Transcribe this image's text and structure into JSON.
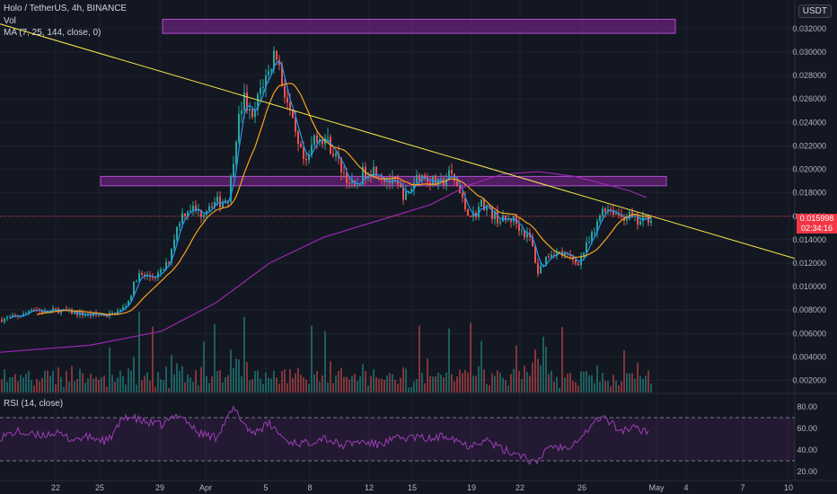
{
  "legend": {
    "symbol": "Holo / TetherUS, 4h, BINANCE",
    "vol": "Vol",
    "ma": "MA (7, 25, 144, close, 0)",
    "rsi": "RSI (14, close)"
  },
  "currency": "USDT",
  "last_price": {
    "value": "0.015998",
    "countdown": "02:34:16"
  },
  "colors": {
    "bg": "#131722",
    "grid": "#1e222d",
    "up": "#26a69a",
    "down": "#ef5350",
    "ma7": "#2196f3",
    "ma25": "#f7a21b",
    "ma144": "#9c27b0",
    "trend": "#f5e94b",
    "zone": "#9c27b0",
    "rsi": "#9b3fb5",
    "price_line": "#f23645"
  },
  "chart_data": [
    {
      "type": "candlestick",
      "symbol": "HOTUSDT",
      "interval": "4h",
      "x_tick_labels": [
        "22",
        "25",
        "29",
        "Apr",
        "5",
        "8",
        "12",
        "15",
        "19",
        "22",
        "26",
        "May",
        "4",
        "7",
        "10"
      ],
      "y_tick_labels": [
        "0.032000",
        "0.030000",
        "0.028000",
        "0.026000",
        "0.024000",
        "0.022000",
        "0.020000",
        "0.018000",
        "0.016000",
        "0.014000",
        "0.012000",
        "0.010000",
        "0.008000",
        "0.006000",
        "0.004000",
        "0.002000"
      ],
      "ylim": [
        0.0012,
        0.0336
      ],
      "close_path": [
        [
          0,
          0.0072
        ],
        [
          14,
          0.0074
        ],
        [
          26,
          0.0076
        ],
        [
          34,
          0.0082
        ],
        [
          48,
          0.0078
        ],
        [
          62,
          0.008
        ],
        [
          78,
          0.0078
        ],
        [
          94,
          0.0076
        ],
        [
          110,
          0.0076
        ],
        [
          122,
          0.0076
        ],
        [
          134,
          0.008
        ],
        [
          142,
          0.0088
        ],
        [
          152,
          0.011
        ],
        [
          164,
          0.0108
        ],
        [
          176,
          0.011
        ],
        [
          186,
          0.012
        ],
        [
          192,
          0.014
        ],
        [
          200,
          0.016
        ],
        [
          210,
          0.0168
        ],
        [
          222,
          0.0162
        ],
        [
          234,
          0.0172
        ],
        [
          246,
          0.0172
        ],
        [
          254,
          0.0178
        ],
        [
          262,
          0.023
        ],
        [
          270,
          0.0262
        ],
        [
          280,
          0.024
        ],
        [
          290,
          0.0272
        ],
        [
          298,
          0.0282
        ],
        [
          306,
          0.0304
        ],
        [
          312,
          0.0278
        ],
        [
          320,
          0.0254
        ],
        [
          330,
          0.022
        ],
        [
          340,
          0.0202
        ],
        [
          350,
          0.023
        ],
        [
          362,
          0.0226
        ],
        [
          372,
          0.0212
        ],
        [
          384,
          0.0194
        ],
        [
          394,
          0.0182
        ],
        [
          404,
          0.0198
        ],
        [
          416,
          0.02
        ],
        [
          428,
          0.0192
        ],
        [
          440,
          0.0186
        ],
        [
          452,
          0.0176
        ],
        [
          464,
          0.0196
        ],
        [
          476,
          0.0192
        ],
        [
          488,
          0.0186
        ],
        [
          500,
          0.0196
        ],
        [
          508,
          0.0186
        ],
        [
          516,
          0.0168
        ],
        [
          526,
          0.016
        ],
        [
          536,
          0.0172
        ],
        [
          546,
          0.0162
        ],
        [
          558,
          0.0156
        ],
        [
          570,
          0.0158
        ],
        [
          580,
          0.0148
        ],
        [
          590,
          0.014
        ],
        [
          598,
          0.0112
        ],
        [
          606,
          0.0124
        ],
        [
          614,
          0.013
        ],
        [
          624,
          0.0128
        ],
        [
          634,
          0.0124
        ],
        [
          642,
          0.012
        ],
        [
          652,
          0.0134
        ],
        [
          662,
          0.0148
        ],
        [
          670,
          0.0168
        ],
        [
          680,
          0.0166
        ],
        [
          690,
          0.016
        ],
        [
          700,
          0.016
        ],
        [
          710,
          0.0154
        ],
        [
          718,
          0.0158
        ],
        [
          724,
          0.016
        ]
      ],
      "overlays": {
        "ma144_path": [
          [
            0,
            0.0044
          ],
          [
            100,
            0.005
          ],
          [
            180,
            0.0062
          ],
          [
            240,
            0.0086
          ],
          [
            300,
            0.012
          ],
          [
            360,
            0.0142
          ],
          [
            420,
            0.0156
          ],
          [
            480,
            0.017
          ],
          [
            520,
            0.0186
          ],
          [
            560,
            0.0196
          ],
          [
            600,
            0.0198
          ],
          [
            640,
            0.0194
          ],
          [
            680,
            0.0186
          ],
          [
            700,
            0.0182
          ],
          [
            720,
            0.0176
          ]
        ],
        "trendline": [
          [
            0,
            0.0324
          ],
          [
            885,
            0.0124
          ]
        ],
        "zones": [
          {
            "x": [
              181,
              752
            ],
            "y": [
              0.0316,
              0.0328
            ]
          },
          {
            "x": [
              112,
              742
            ],
            "y": [
              0.0186,
              0.0194
            ]
          }
        ],
        "last_price": 0.015998
      }
    },
    {
      "type": "bar",
      "name": "Vol",
      "values_relative": "estimated volume profile shown beneath price",
      "ylim": [
        0,
        1
      ]
    },
    {
      "type": "line",
      "name": "RSI (14, close)",
      "y_tick_labels": [
        "80.00",
        "60.00",
        "40.00",
        "20.00"
      ],
      "ylim": [
        15,
        90
      ],
      "bands": [
        30,
        70
      ],
      "path": [
        [
          0,
          52
        ],
        [
          20,
          57
        ],
        [
          40,
          53
        ],
        [
          60,
          56
        ],
        [
          80,
          50
        ],
        [
          100,
          52
        ],
        [
          120,
          48
        ],
        [
          140,
          72
        ],
        [
          160,
          66
        ],
        [
          180,
          63
        ],
        [
          200,
          74
        ],
        [
          220,
          56
        ],
        [
          240,
          52
        ],
        [
          260,
          78
        ],
        [
          280,
          56
        ],
        [
          300,
          64
        ],
        [
          320,
          48
        ],
        [
          340,
          46
        ],
        [
          360,
          52
        ],
        [
          380,
          44
        ],
        [
          400,
          48
        ],
        [
          420,
          45
        ],
        [
          440,
          50
        ],
        [
          460,
          52
        ],
        [
          480,
          50
        ],
        [
          500,
          54
        ],
        [
          520,
          44
        ],
        [
          540,
          50
        ],
        [
          560,
          40
        ],
        [
          580,
          36
        ],
        [
          598,
          26
        ],
        [
          610,
          44
        ],
        [
          630,
          42
        ],
        [
          650,
          55
        ],
        [
          670,
          72
        ],
        [
          690,
          58
        ],
        [
          705,
          60
        ],
        [
          720,
          58
        ]
      ]
    }
  ]
}
